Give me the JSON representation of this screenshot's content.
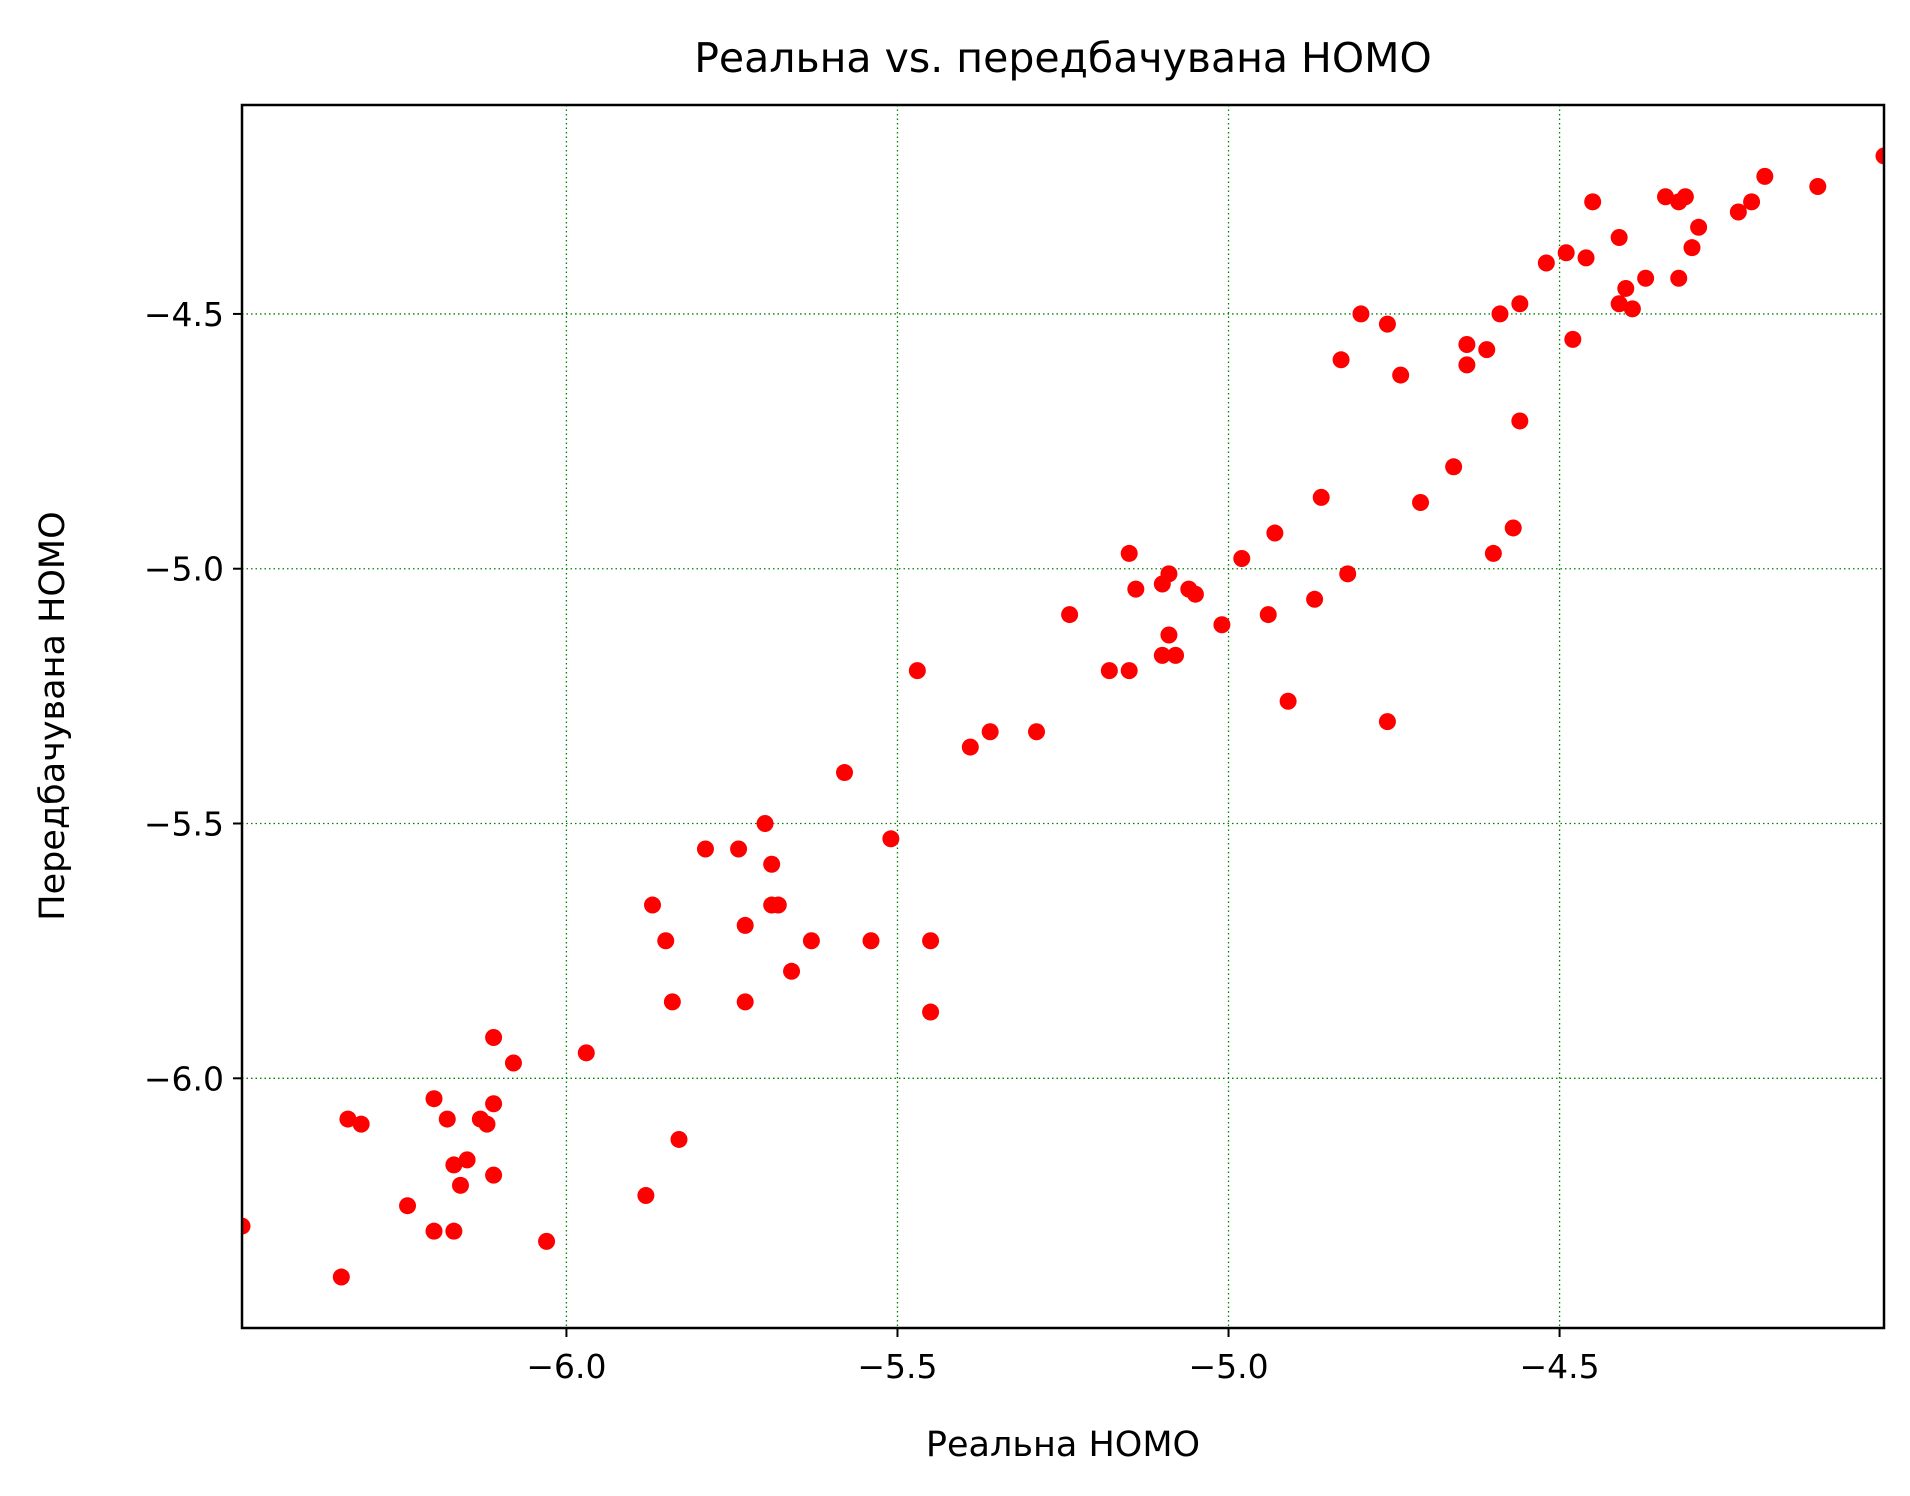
{
  "chart_data": {
    "type": "scatter",
    "title": "Реальна vs. передбачувана HOMO",
    "xlabel": "Реальна HOMO",
    "ylabel": "Передбачувана HOMO",
    "xlim": [
      -6.49,
      -4.01
    ],
    "ylim": [
      -6.49,
      -4.09
    ],
    "x_ticks": [
      -6.0,
      -5.5,
      -5.0,
      -4.5
    ],
    "y_ticks": [
      -6.0,
      -5.5,
      -5.0,
      -4.5
    ],
    "x_tick_labels": [
      "−6.0",
      "−5.5",
      "−5.0",
      "−4.5"
    ],
    "y_tick_labels": [
      "−6.0",
      "−5.5",
      "−5.0",
      "−4.5"
    ],
    "grid": true,
    "grid_color": "#008000",
    "marker_color": "#ff0000",
    "series": [
      {
        "points": [
          [
            -6.49,
            -6.29
          ],
          [
            -6.34,
            -6.39
          ],
          [
            -6.33,
            -6.08
          ],
          [
            -6.31,
            -6.09
          ],
          [
            -6.24,
            -6.25
          ],
          [
            -6.2,
            -6.04
          ],
          [
            -6.2,
            -6.3
          ],
          [
            -6.18,
            -6.08
          ],
          [
            -6.17,
            -6.17
          ],
          [
            -6.17,
            -6.3
          ],
          [
            -6.16,
            -6.21
          ],
          [
            -6.15,
            -6.16
          ],
          [
            -6.13,
            -6.08
          ],
          [
            -6.12,
            -6.09
          ],
          [
            -6.11,
            -6.05
          ],
          [
            -6.11,
            -6.19
          ],
          [
            -6.11,
            -5.92
          ],
          [
            -6.08,
            -5.97
          ],
          [
            -6.03,
            -6.32
          ],
          [
            -5.97,
            -5.95
          ],
          [
            -5.88,
            -6.23
          ],
          [
            -5.87,
            -5.66
          ],
          [
            -5.85,
            -5.73
          ],
          [
            -5.84,
            -5.85
          ],
          [
            -5.83,
            -6.12
          ],
          [
            -5.79,
            -5.55
          ],
          [
            -5.74,
            -5.55
          ],
          [
            -5.73,
            -5.7
          ],
          [
            -5.73,
            -5.85
          ],
          [
            -5.7,
            -5.5
          ],
          [
            -5.69,
            -5.58
          ],
          [
            -5.69,
            -5.66
          ],
          [
            -5.68,
            -5.66
          ],
          [
            -5.66,
            -5.79
          ],
          [
            -5.63,
            -5.73
          ],
          [
            -5.58,
            -5.4
          ],
          [
            -5.54,
            -5.73
          ],
          [
            -5.51,
            -5.53
          ],
          [
            -5.47,
            -5.2
          ],
          [
            -5.45,
            -5.73
          ],
          [
            -5.45,
            -5.87
          ],
          [
            -5.39,
            -5.35
          ],
          [
            -5.36,
            -5.32
          ],
          [
            -5.29,
            -5.32
          ],
          [
            -5.24,
            -5.09
          ],
          [
            -5.18,
            -5.2
          ],
          [
            -5.15,
            -5.2
          ],
          [
            -5.15,
            -4.97
          ],
          [
            -5.14,
            -5.04
          ],
          [
            -5.1,
            -5.03
          ],
          [
            -5.1,
            -5.17
          ],
          [
            -5.09,
            -5.01
          ],
          [
            -5.09,
            -5.13
          ],
          [
            -5.08,
            -5.17
          ],
          [
            -5.06,
            -5.04
          ],
          [
            -5.05,
            -5.05
          ],
          [
            -5.01,
            -5.11
          ],
          [
            -4.98,
            -4.98
          ],
          [
            -4.94,
            -5.09
          ],
          [
            -4.93,
            -4.93
          ],
          [
            -4.91,
            -5.26
          ],
          [
            -4.87,
            -5.06
          ],
          [
            -4.86,
            -4.86
          ],
          [
            -4.83,
            -4.59
          ],
          [
            -4.82,
            -5.01
          ],
          [
            -4.8,
            -4.5
          ],
          [
            -4.76,
            -4.52
          ],
          [
            -4.76,
            -5.3
          ],
          [
            -4.74,
            -4.62
          ],
          [
            -4.71,
            -4.87
          ],
          [
            -4.66,
            -4.8
          ],
          [
            -4.64,
            -4.56
          ],
          [
            -4.64,
            -4.6
          ],
          [
            -4.61,
            -4.57
          ],
          [
            -4.6,
            -4.97
          ],
          [
            -4.59,
            -4.5
          ],
          [
            -4.57,
            -4.92
          ],
          [
            -4.56,
            -4.48
          ],
          [
            -4.56,
            -4.71
          ],
          [
            -4.52,
            -4.4
          ],
          [
            -4.49,
            -4.38
          ],
          [
            -4.48,
            -4.55
          ],
          [
            -4.46,
            -4.39
          ],
          [
            -4.45,
            -4.28
          ],
          [
            -4.41,
            -4.35
          ],
          [
            -4.41,
            -4.48
          ],
          [
            -4.4,
            -4.45
          ],
          [
            -4.39,
            -4.49
          ],
          [
            -4.37,
            -4.43
          ],
          [
            -4.34,
            -4.27
          ],
          [
            -4.32,
            -4.28
          ],
          [
            -4.32,
            -4.43
          ],
          [
            -4.31,
            -4.27
          ],
          [
            -4.3,
            -4.37
          ],
          [
            -4.29,
            -4.33
          ],
          [
            -4.23,
            -4.3
          ],
          [
            -4.21,
            -4.28
          ],
          [
            -4.19,
            -4.23
          ],
          [
            -4.11,
            -4.25
          ],
          [
            -4.01,
            -4.19
          ]
        ]
      }
    ]
  }
}
